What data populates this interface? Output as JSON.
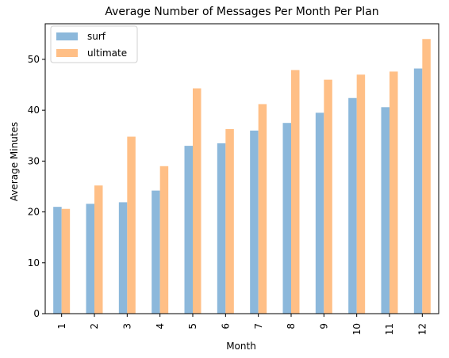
{
  "chart_data": {
    "type": "bar",
    "title": "Average Number of Messages Per Month Per Plan",
    "xlabel": "Month",
    "ylabel": "Average Minutes",
    "categories": [
      "1",
      "2",
      "3",
      "4",
      "5",
      "6",
      "7",
      "8",
      "9",
      "10",
      "11",
      "12"
    ],
    "series": [
      {
        "name": "surf",
        "values": [
          21.0,
          21.6,
          21.9,
          24.2,
          33.0,
          33.5,
          36.0,
          37.5,
          39.5,
          42.4,
          40.6,
          48.2
        ],
        "color": "#8cb8db"
      },
      {
        "name": "ultimate",
        "values": [
          20.6,
          25.2,
          34.8,
          29.0,
          44.3,
          36.3,
          41.2,
          47.9,
          46.0,
          47.0,
          47.6,
          54.0
        ]
      }
    ],
    "ylim": [
      0,
      57
    ],
    "yticks": [
      0,
      10,
      20,
      30,
      40,
      50
    ],
    "grid": false,
    "legend": "top-left"
  },
  "colors": {
    "surf": "#8cb8db",
    "ultimate": "#ffbf86"
  }
}
